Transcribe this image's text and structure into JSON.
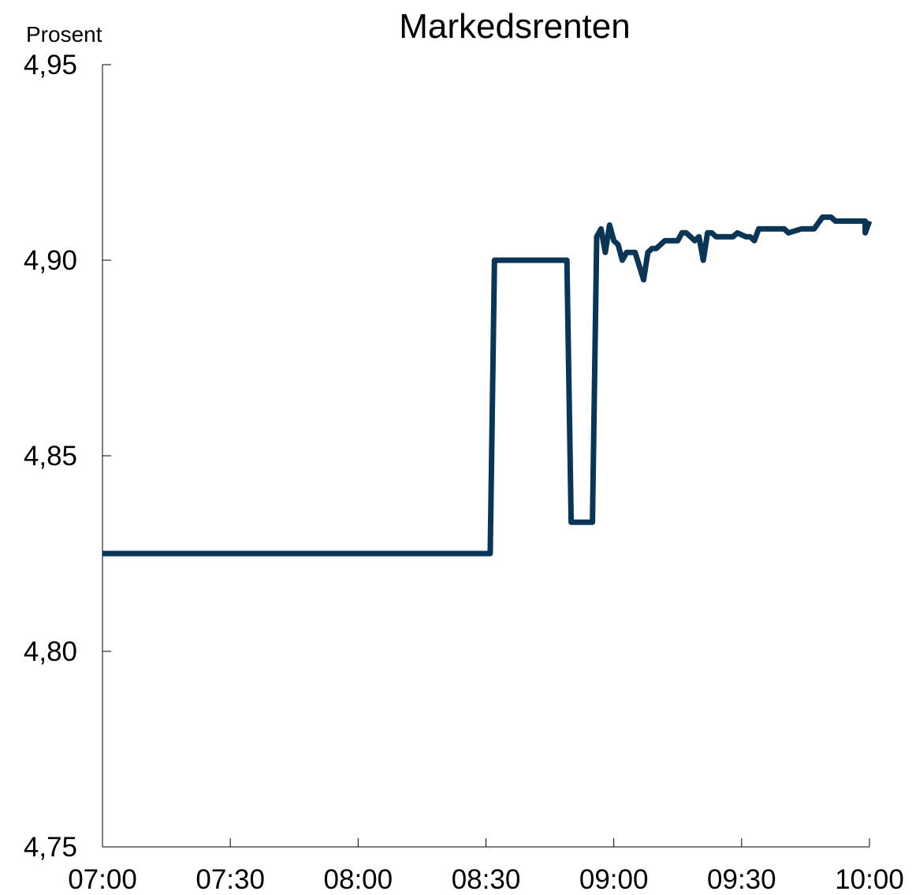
{
  "chart_data": {
    "type": "line",
    "title": "Markedsrenten",
    "ylabel": "Prosent",
    "xlabel": "",
    "xlim": [
      "07:00",
      "10:00"
    ],
    "ylim": [
      4.75,
      4.95
    ],
    "x_ticks": [
      "07:00",
      "07:30",
      "08:00",
      "08:30",
      "09:00",
      "09:30",
      "10:00"
    ],
    "y_ticks": [
      "4,75",
      "4,80",
      "4,85",
      "4,90",
      "4,95"
    ],
    "grid": false,
    "legend": "none",
    "colors": {
      "series": "#0b3555",
      "axis": "#000000"
    },
    "series": [
      {
        "x": [
          "07:00",
          "08:31",
          "08:31",
          "08:32",
          "08:49",
          "08:50",
          "08:55",
          "08:56",
          "08:56",
          "08:57",
          "08:57",
          "08:58",
          "08:59",
          "09:00",
          "09:01",
          "09:02",
          "09:03",
          "09:04",
          "09:05",
          "09:07",
          "09:07",
          "09:08",
          "09:08",
          "09:09",
          "09:10",
          "09:12",
          "09:13",
          "09:15",
          "09:16",
          "09:17",
          "09:19",
          "09:20",
          "09:21",
          "09:22",
          "09:23",
          "09:24",
          "09:25",
          "09:27",
          "09:28",
          "09:29",
          "09:31",
          "09:32",
          "09:33",
          "09:34",
          "09:37",
          "09:39",
          "09:40",
          "09:41",
          "09:44",
          "09:45",
          "09:47",
          "09:49",
          "09:51",
          "09:52",
          "09:54",
          "09:56",
          "09:59",
          "09:59",
          "10:00"
        ],
        "y": [
          4.825,
          4.825,
          4.825,
          4.9,
          4.9,
          4.833,
          4.833,
          4.906,
          4.906,
          4.908,
          4.908,
          4.902,
          4.909,
          4.905,
          4.904,
          4.9,
          4.902,
          4.902,
          4.902,
          4.895,
          4.895,
          4.902,
          4.902,
          4.903,
          4.903,
          4.905,
          4.905,
          4.905,
          4.907,
          4.907,
          4.905,
          4.906,
          4.9,
          4.907,
          4.907,
          4.906,
          4.906,
          4.906,
          4.906,
          4.907,
          4.906,
          4.906,
          4.905,
          4.908,
          4.908,
          4.908,
          4.908,
          4.907,
          4.908,
          4.908,
          4.908,
          4.911,
          4.911,
          4.91,
          4.91,
          4.91,
          4.91,
          4.907,
          4.91
        ]
      }
    ]
  }
}
